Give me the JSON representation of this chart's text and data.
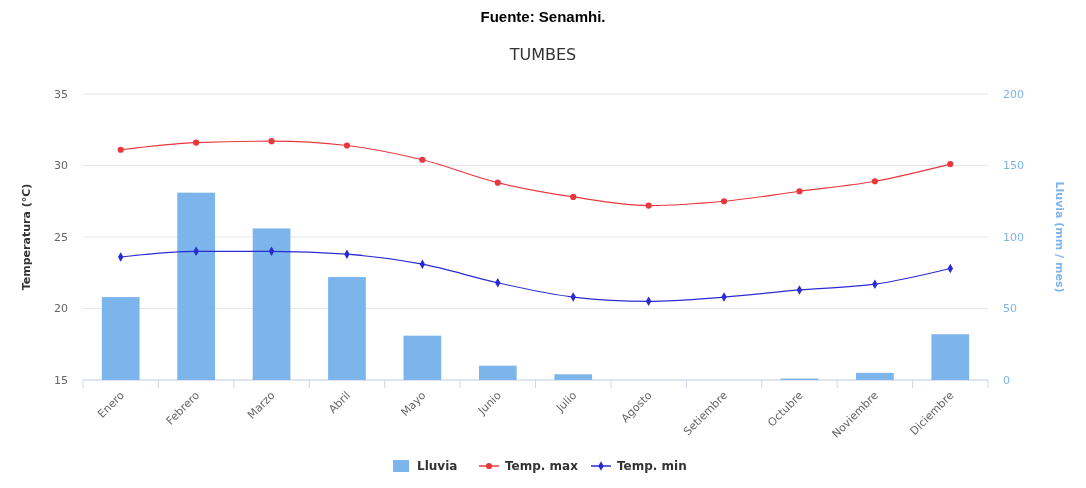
{
  "chart_data": {
    "type": "bar",
    "title": "TUMBES",
    "annotations": [
      "Fuente: Senamhi."
    ],
    "categories": [
      "Enero",
      "Febrero",
      "Marzo",
      "Abril",
      "Mayo",
      "Junio",
      "Julio",
      "Agosto",
      "Setiembre",
      "Octubre",
      "Noviembre",
      "Diciembre"
    ],
    "series": [
      {
        "name": "Lluvia",
        "axis": "y2",
        "color": "#7cb5ec",
        "values": [
          58,
          131,
          106,
          72,
          31,
          10,
          4,
          0,
          0,
          1,
          5,
          32
        ]
      },
      {
        "name": "Temp. max",
        "type": "line",
        "color": "#e8383d",
        "marker": "circle",
        "values": [
          31.1,
          31.6,
          31.7,
          31.4,
          30.4,
          28.8,
          27.8,
          27.2,
          27.5,
          28.2,
          28.9,
          30.1
        ]
      },
      {
        "name": "Temp. min",
        "type": "line",
        "color": "#2b2bd4",
        "marker": "diamond",
        "values": [
          23.6,
          24.0,
          24.0,
          23.8,
          23.1,
          21.8,
          20.8,
          20.5,
          20.8,
          21.3,
          21.7,
          22.8
        ]
      }
    ],
    "ylabel": "Temperatura (°C)",
    "y2label": "Lluvia (mm / mes)",
    "ylim": [
      15,
      35
    ],
    "yticks": [
      15,
      20,
      25,
      30,
      35
    ],
    "y2lim": [
      0,
      200
    ],
    "y2ticks": [
      0,
      50,
      100,
      150,
      200
    ],
    "grid": "y",
    "legend": "bottom"
  }
}
